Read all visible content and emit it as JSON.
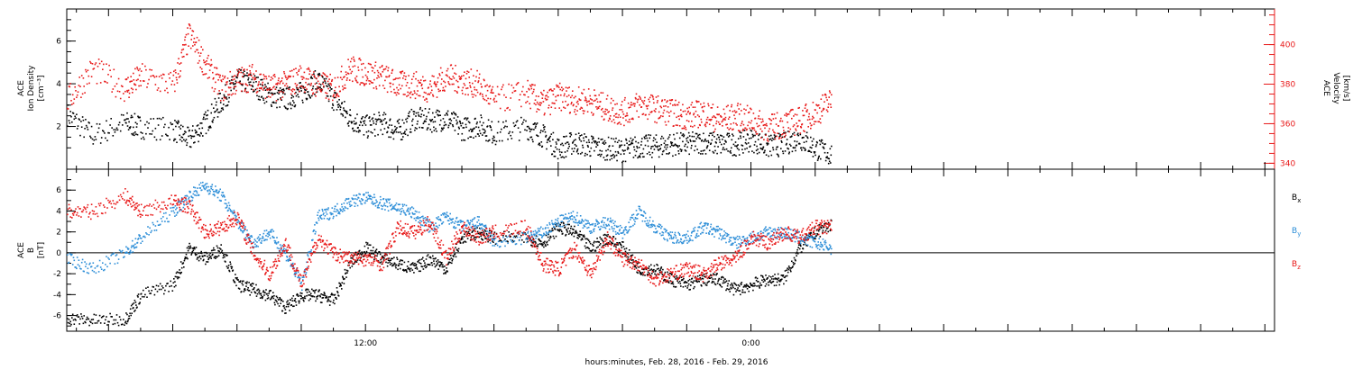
{
  "colors": {
    "black": "#000000",
    "red": "#e81919",
    "blue": "#2f8fd8"
  },
  "xlabel": "hours:minutes, Feb. 28, 2016 - Feb. 29, 2016",
  "chart_data": [
    {
      "type": "scatter",
      "panel": "top",
      "x_unit": "hours since 2016-02-28 00:00",
      "xlim": [
        2.7,
        40.3
      ],
      "x_ticks": [
        {
          "x": 12,
          "label": "12:00"
        },
        {
          "x": 24,
          "label": "0:00"
        }
      ],
      "ylabel_left": [
        "ACE",
        "Ion Density",
        "[cm⁻³]"
      ],
      "ylabel_right": [
        "ACE",
        "Velocity",
        "[km/s]"
      ],
      "ylim_left": [
        0,
        7.5
      ],
      "yticks_left": [
        "2",
        "4",
        "6"
      ],
      "ylim_right": [
        337,
        418
      ],
      "yticks_right": [
        "340",
        "360",
        "380",
        "400"
      ],
      "series": [
        {
          "axis": "left",
          "color": "black",
          "x": [
            2.7,
            3.5,
            4.5,
            5.0,
            6.0,
            6.5,
            7.0,
            7.5,
            8.0,
            8.5,
            9.0,
            9.5,
            10.0,
            10.5,
            11.0,
            11.5,
            12.0,
            12.5,
            13.0,
            13.5,
            14.0,
            14.5,
            15.0,
            15.5,
            16.0,
            17.0,
            17.5,
            18.0,
            18.5,
            19.0,
            19.5,
            20.0,
            20.5,
            21.0,
            21.5,
            22.0,
            22.5,
            23.0,
            23.5,
            24.0,
            24.5,
            25.0,
            25.5,
            26.0,
            26.5
          ],
          "y": [
            2.6,
            1.6,
            2.2,
            2.0,
            1.9,
            1.4,
            2.2,
            3.2,
            4.2,
            4.0,
            3.5,
            3.3,
            3.6,
            4.2,
            3.3,
            2.4,
            2.0,
            2.2,
            1.8,
            2.4,
            2.3,
            2.4,
            1.9,
            2.1,
            1.7,
            2.0,
            1.6,
            1.0,
            1.3,
            1.1,
            1.0,
            0.9,
            1.1,
            1.1,
            1.2,
            1.2,
            1.3,
            1.2,
            1.2,
            1.4,
            1.1,
            1.2,
            1.5,
            1.0,
            0.7
          ]
        },
        {
          "axis": "right",
          "color": "red",
          "x": [
            2.7,
            3.5,
            4.5,
            5.0,
            6.0,
            6.5,
            7.0,
            7.5,
            8.0,
            8.5,
            9.0,
            9.5,
            10.0,
            10.5,
            11.0,
            11.5,
            12.0,
            12.5,
            13.0,
            13.5,
            14.0,
            14.5,
            15.0,
            15.5,
            16.0,
            17.0,
            17.5,
            18.0,
            18.5,
            19.0,
            19.5,
            20.0,
            20.5,
            21.0,
            21.5,
            22.0,
            22.5,
            23.0,
            23.5,
            24.0,
            24.5,
            25.0,
            25.5,
            26.0,
            26.5
          ],
          "y": [
            372,
            388,
            378,
            384,
            380,
            405,
            390,
            378,
            382,
            384,
            378,
            380,
            384,
            380,
            378,
            388,
            386,
            384,
            380,
            380,
            378,
            384,
            382,
            380,
            372,
            376,
            370,
            374,
            372,
            372,
            368,
            366,
            370,
            368,
            366,
            364,
            366,
            362,
            364,
            362,
            358,
            360,
            362,
            366,
            372
          ]
        }
      ]
    },
    {
      "type": "scatter",
      "panel": "bottom",
      "x_unit": "hours since 2016-02-28 00:00",
      "xlim": [
        2.7,
        40.3
      ],
      "x_ticks": [
        {
          "x": 12,
          "label": "12:00"
        },
        {
          "x": 24,
          "label": "0:00"
        }
      ],
      "ylabel_left": [
        "ACE",
        "B",
        "[nT]"
      ],
      "ylim": [
        -7.5,
        8
      ],
      "yticks": [
        "-6",
        "-4",
        "-2",
        "0",
        "2",
        "4",
        "6"
      ],
      "zero_line": true,
      "legend_position": "right",
      "series": [
        {
          "name": "B",
          "subscript": "x",
          "color": "black",
          "x": [
            2.7,
            3.5,
            4.5,
            5.0,
            6.0,
            6.5,
            7.0,
            7.5,
            8.0,
            8.5,
            9.0,
            9.5,
            10.0,
            10.5,
            11.0,
            11.5,
            12.0,
            12.5,
            13.0,
            13.5,
            14.0,
            14.5,
            15.0,
            15.5,
            16.0,
            17.0,
            17.5,
            18.0,
            18.5,
            19.0,
            19.5,
            20.0,
            20.5,
            21.0,
            21.5,
            22.0,
            22.5,
            23.0,
            23.5,
            24.0,
            24.5,
            25.0,
            25.5,
            26.0,
            26.5
          ],
          "y": [
            -6.2,
            -6.4,
            -6.3,
            -4.0,
            -3.0,
            0.5,
            -0.5,
            0.5,
            -3.0,
            -3.5,
            -4.0,
            -5.2,
            -4.0,
            -4.0,
            -4.5,
            -1.0,
            0.5,
            -0.5,
            -1.0,
            -1.5,
            -0.5,
            -1.5,
            1.5,
            2.0,
            1.5,
            1.5,
            1.0,
            2.5,
            2.0,
            0.5,
            1.5,
            0.5,
            -1.5,
            -1.5,
            -2.5,
            -3.0,
            -2.5,
            -2.5,
            -3.5,
            -3.0,
            -2.5,
            -2.5,
            0.5,
            2.0,
            2.8
          ]
        },
        {
          "name": "B",
          "subscript": "y",
          "color": "blue",
          "x": [
            2.7,
            3.5,
            4.5,
            5.0,
            6.0,
            6.5,
            7.0,
            7.5,
            8.0,
            8.5,
            9.0,
            9.5,
            10.0,
            10.5,
            11.0,
            11.5,
            12.0,
            12.5,
            13.0,
            13.5,
            14.0,
            14.5,
            15.0,
            15.5,
            16.0,
            17.0,
            17.5,
            18.0,
            18.5,
            19.0,
            19.5,
            20.0,
            20.5,
            21.0,
            21.5,
            22.0,
            22.5,
            23.0,
            23.5,
            24.0,
            24.5,
            25.0,
            25.5,
            26.0,
            26.5
          ],
          "y": [
            -0.5,
            -1.5,
            0.0,
            1.5,
            4.0,
            5.5,
            6.5,
            5.5,
            3.0,
            1.0,
            2.0,
            0.0,
            -3.0,
            3.5,
            4.0,
            5.0,
            5.3,
            4.8,
            4.4,
            3.8,
            2.5,
            3.5,
            2.5,
            3.0,
            1.0,
            1.5,
            2.0,
            3.0,
            3.5,
            2.5,
            3.0,
            2.0,
            4.0,
            2.5,
            1.5,
            1.5,
            2.5,
            2.0,
            1.0,
            1.5,
            2.0,
            2.0,
            1.5,
            1.0,
            0.5
          ]
        },
        {
          "name": "B",
          "subscript": "z",
          "color": "red",
          "x": [
            2.7,
            3.5,
            4.5,
            5.0,
            6.0,
            6.5,
            7.0,
            7.5,
            8.0,
            8.5,
            9.0,
            9.5,
            10.0,
            10.5,
            11.0,
            11.5,
            12.0,
            12.5,
            13.0,
            13.5,
            14.0,
            14.5,
            15.0,
            15.5,
            16.0,
            17.0,
            17.5,
            18.0,
            18.5,
            19.0,
            19.5,
            20.0,
            20.5,
            21.0,
            21.5,
            22.0,
            22.5,
            23.0,
            23.5,
            24.0,
            24.5,
            25.0,
            25.5,
            26.0,
            26.5
          ],
          "y": [
            4.0,
            4.0,
            5.5,
            4.0,
            5.0,
            4.5,
            2.0,
            2.5,
            3.5,
            0.0,
            -2.0,
            1.0,
            -3.0,
            1.5,
            0.0,
            -0.5,
            -0.5,
            -1.0,
            2.5,
            2.0,
            3.0,
            -0.5,
            2.5,
            1.5,
            2.0,
            2.5,
            -1.0,
            -1.5,
            0.5,
            -2.0,
            1.5,
            -0.5,
            -1.0,
            -2.5,
            -2.0,
            -1.5,
            -2.0,
            -1.0,
            -0.5,
            1.5,
            1.0,
            2.0,
            1.5,
            2.5,
            2.5
          ]
        }
      ]
    }
  ]
}
